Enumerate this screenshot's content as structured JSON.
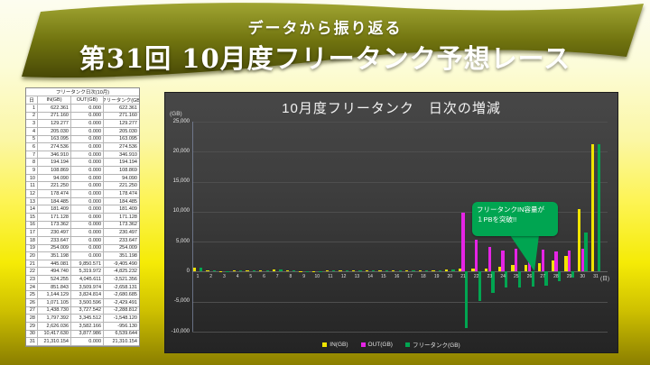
{
  "banner": {
    "subtitle": "データから振り返る",
    "title": "第31回 10月度フリータンク予想レース"
  },
  "table": {
    "title": "フリータンク日次(10月)",
    "columns": [
      "日",
      "IN(GB)",
      "OUT(GB)",
      "フリータンク(GB)"
    ],
    "rows": [
      [
        "1",
        "622.361",
        "0.000",
        "622.361"
      ],
      [
        "2",
        "271.160",
        "0.000",
        "271.160"
      ],
      [
        "3",
        "129.277",
        "0.000",
        "129.277"
      ],
      [
        "4",
        "205.030",
        "0.000",
        "205.030"
      ],
      [
        "5",
        "163.095",
        "0.000",
        "163.095"
      ],
      [
        "6",
        "274.536",
        "0.000",
        "274.536"
      ],
      [
        "7",
        "346.910",
        "0.000",
        "346.910"
      ],
      [
        "8",
        "194.194",
        "0.000",
        "194.194"
      ],
      [
        "9",
        "108.869",
        "0.000",
        "108.869"
      ],
      [
        "10",
        "94.090",
        "0.000",
        "94.090"
      ],
      [
        "11",
        "221.250",
        "0.000",
        "221.250"
      ],
      [
        "12",
        "178.474",
        "0.000",
        "178.474"
      ],
      [
        "13",
        "184.485",
        "0.000",
        "184.485"
      ],
      [
        "14",
        "181.409",
        "0.000",
        "181.409"
      ],
      [
        "15",
        "171.128",
        "0.000",
        "171.128"
      ],
      [
        "16",
        "173.362",
        "0.000",
        "173.362"
      ],
      [
        "17",
        "230.497",
        "0.000",
        "230.497"
      ],
      [
        "18",
        "233.647",
        "0.000",
        "233.647"
      ],
      [
        "19",
        "254.009",
        "0.000",
        "254.009"
      ],
      [
        "20",
        "351.198",
        "0.000",
        "351.198"
      ],
      [
        "21",
        "445.081",
        "9,850.571",
        "-9,405.490"
      ],
      [
        "22",
        "494.740",
        "5,319.972",
        "-4,825.232"
      ],
      [
        "23",
        "524.255",
        "4,045.611",
        "-3,521.356"
      ],
      [
        "24",
        "851.843",
        "3,509.974",
        "-2,658.131"
      ],
      [
        "25",
        "1,144.129",
        "3,824.814",
        "-2,680.685"
      ],
      [
        "26",
        "1,071.105",
        "3,500.596",
        "-2,429.491"
      ],
      [
        "27",
        "1,438.730",
        "3,727.542",
        "-2,288.812"
      ],
      [
        "28",
        "1,797.392",
        "3,345.512",
        "-1,548.120"
      ],
      [
        "29",
        "2,626.036",
        "3,582.166",
        "-956.130"
      ],
      [
        "30",
        "10,417.630",
        "3,877.986",
        "6,539.644"
      ],
      [
        "31",
        "21,310.154",
        "0.000",
        "21,310.154"
      ]
    ]
  },
  "chart": {
    "title": "10月度フリータンク　日次の増減",
    "y_unit_label": "(GB)",
    "x_unit_label": "(日)",
    "callout_line1": "フリータンクIN容量が",
    "callout_line2": "１PBを突破!!",
    "callout_color": "#00a551"
  },
  "chart_data": {
    "type": "bar",
    "title": "10月度フリータンク　日次の増減",
    "xlabel": "(日)",
    "ylabel": "(GB)",
    "ylim": [
      -10000,
      25000
    ],
    "ytick_step": 5000,
    "grid": true,
    "legend_position": "bottom",
    "categories": [
      1,
      2,
      3,
      4,
      5,
      6,
      7,
      8,
      9,
      10,
      11,
      12,
      13,
      14,
      15,
      16,
      17,
      18,
      19,
      20,
      21,
      22,
      23,
      24,
      25,
      26,
      27,
      28,
      29,
      30,
      31
    ],
    "series": [
      {
        "name": "IN(GB)",
        "color": "#f0e400",
        "values": [
          622.361,
          271.16,
          129.277,
          205.03,
          163.095,
          274.536,
          346.91,
          194.194,
          108.869,
          94.09,
          221.25,
          178.474,
          184.485,
          181.409,
          171.128,
          173.362,
          230.497,
          233.647,
          254.009,
          351.198,
          445.081,
          494.74,
          524.255,
          851.843,
          1144.129,
          1071.105,
          1438.73,
          1797.392,
          2626.036,
          10417.63,
          21310.154
        ]
      },
      {
        "name": "OUT(GB)",
        "color": "#e524e5",
        "values": [
          0,
          0,
          0,
          0,
          0,
          0,
          0,
          0,
          0,
          0,
          0,
          0,
          0,
          0,
          0,
          0,
          0,
          0,
          0,
          0,
          9850.571,
          5319.972,
          4045.611,
          3509.974,
          3824.814,
          3500.596,
          3727.542,
          3345.512,
          3582.166,
          3877.986,
          0
        ]
      },
      {
        "name": "フリータンク(GB)",
        "color": "#00a551",
        "values": [
          622.361,
          271.16,
          129.277,
          205.03,
          163.095,
          274.536,
          346.91,
          194.194,
          108.869,
          94.09,
          221.25,
          178.474,
          184.485,
          181.409,
          171.128,
          173.362,
          230.497,
          233.647,
          254.009,
          351.198,
          -9405.49,
          -4825.232,
          -3521.356,
          -2658.131,
          -2680.685,
          -2429.491,
          -2288.812,
          -1548.12,
          -956.13,
          6539.644,
          21310.154
        ]
      }
    ]
  }
}
